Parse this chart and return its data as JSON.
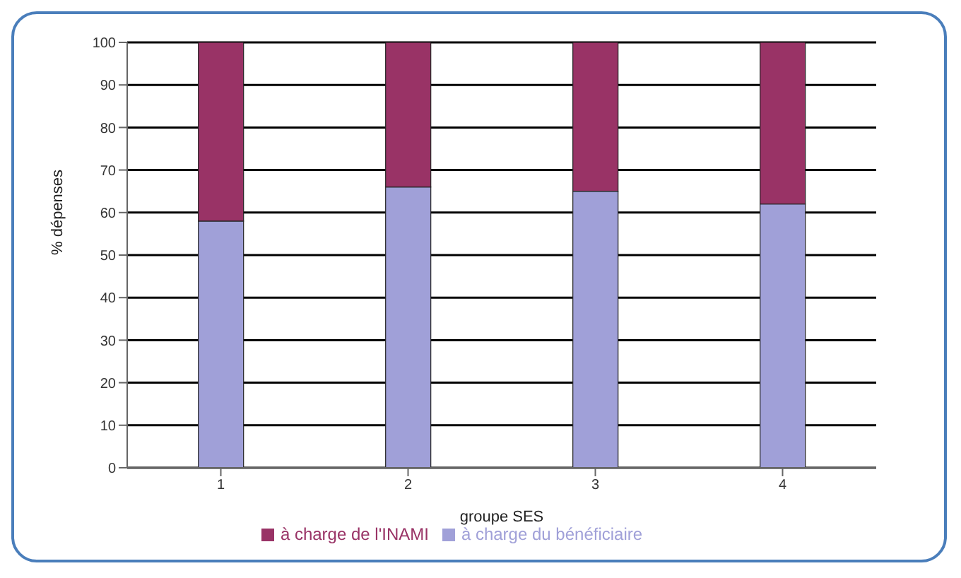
{
  "chart_data": {
    "type": "bar",
    "stacked": true,
    "xlabel": "groupe SES",
    "ylabel": "% dépenses",
    "categories": [
      "1",
      "2",
      "3",
      "4"
    ],
    "series": [
      {
        "name": "à charge du bénéficiaire",
        "color": "#a0a0d8",
        "values": [
          58,
          66,
          65,
          62
        ]
      },
      {
        "name": "à charge de l'INAMI",
        "color": "#993366",
        "values": [
          42,
          34,
          35,
          38
        ]
      }
    ],
    "ylim": [
      0,
      100
    ],
    "yticks": [
      0,
      10,
      20,
      30,
      40,
      50,
      60,
      70,
      80,
      90,
      100
    ],
    "grid": "y",
    "legend": "bottom"
  }
}
